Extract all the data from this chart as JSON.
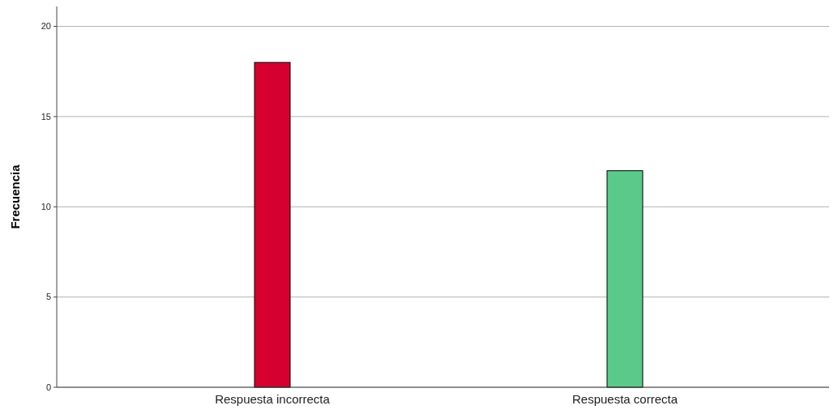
{
  "chart_data": {
    "type": "bar",
    "ylabel": "Frecuencia",
    "categories": [
      "Respuesta incorrecta",
      "Respuesta correcta"
    ],
    "values": [
      18,
      12
    ],
    "colors": [
      "#d5002f",
      "#5bc98a"
    ],
    "ylim": [
      0,
      21.1
    ],
    "yticks": [
      0,
      5,
      10,
      15,
      20
    ],
    "grid": "y"
  }
}
